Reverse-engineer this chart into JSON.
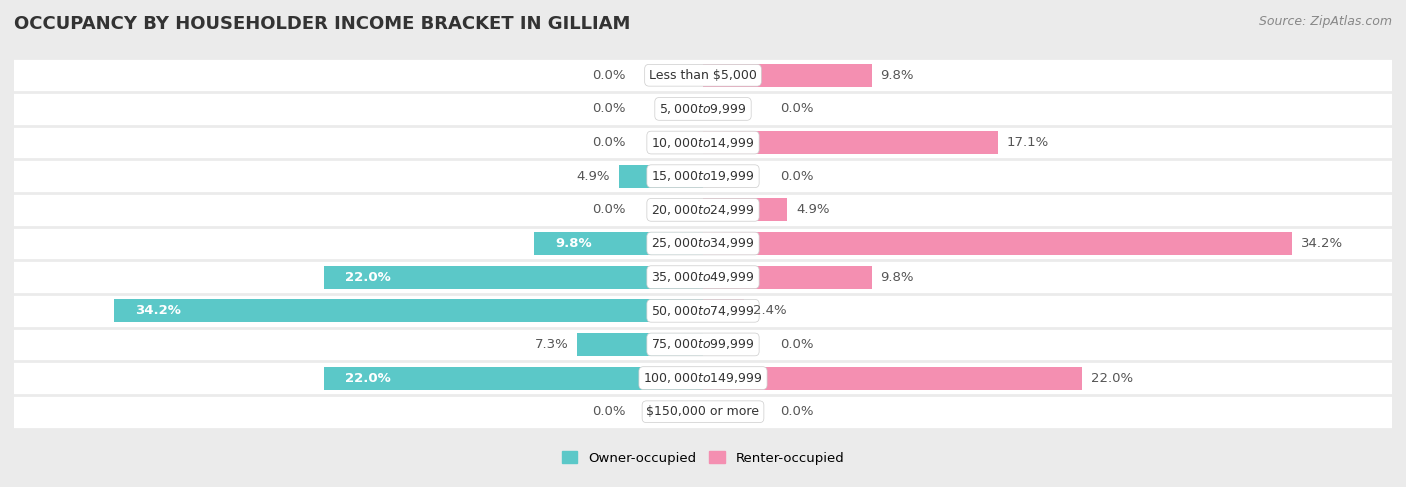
{
  "title": "OCCUPANCY BY HOUSEHOLDER INCOME BRACKET IN GILLIAM",
  "source": "Source: ZipAtlas.com",
  "categories": [
    "Less than $5,000",
    "$5,000 to $9,999",
    "$10,000 to $14,999",
    "$15,000 to $19,999",
    "$20,000 to $24,999",
    "$25,000 to $34,999",
    "$35,000 to $49,999",
    "$50,000 to $74,999",
    "$75,000 to $99,999",
    "$100,000 to $149,999",
    "$150,000 or more"
  ],
  "owner_values": [
    0.0,
    0.0,
    0.0,
    4.9,
    0.0,
    9.8,
    22.0,
    34.2,
    7.3,
    22.0,
    0.0
  ],
  "renter_values": [
    9.8,
    0.0,
    17.1,
    0.0,
    4.9,
    34.2,
    9.8,
    2.4,
    0.0,
    22.0,
    0.0
  ],
  "owner_color": "#5bc8c8",
  "renter_color": "#f48fb1",
  "owner_label": "Owner-occupied",
  "renter_label": "Renter-occupied",
  "xlim": 40.0,
  "background_color": "#ebebeb",
  "row_bg_color": "#ffffff",
  "row_alt_color": "#f0f0f0",
  "title_fontsize": 13,
  "source_fontsize": 9,
  "label_fontsize": 9.5,
  "cat_fontsize": 9,
  "axis_label_fontsize": 9.5,
  "inside_label_threshold": 8.0,
  "inside_label_color": "#ffffff"
}
